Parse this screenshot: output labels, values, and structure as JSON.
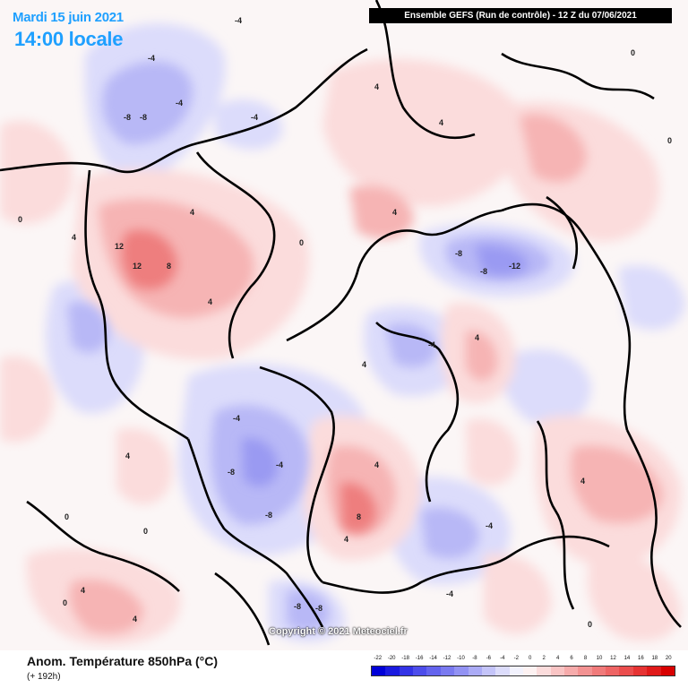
{
  "header": {
    "valid_date": "Mardi 15 juin 2021",
    "local_time": "14:00 locale",
    "run_info": "Ensemble GEFS  (Run de contrôle)  -  12 Z du 07/06/2021"
  },
  "footer": {
    "parameter": "Anom. Température 850hPa (°C)",
    "lead_time": "(+ 192h)",
    "copyright": "Copyright © 2021 Meteociel.fr"
  },
  "legend": {
    "labels": [
      "-22",
      "-20",
      "-18",
      "-16",
      "-14",
      "-12",
      "-10",
      "-8",
      "-6",
      "-4",
      "-2",
      "0",
      "2",
      "4",
      "6",
      "8",
      "10",
      "12",
      "14",
      "16",
      "18",
      "20"
    ],
    "colors": [
      "#0000d8",
      "#1a1ae0",
      "#3333e6",
      "#4d4deb",
      "#6464ee",
      "#7a7af0",
      "#9292f3",
      "#ababf6",
      "#c4c4f9",
      "#dcdcfb",
      "#f2f2fd",
      "#fdf2f2",
      "#fbdcdc",
      "#f9c4c4",
      "#f6abab",
      "#f39292",
      "#f07a7a",
      "#ee6464",
      "#eb4d4d",
      "#e63333",
      "#e01a1a",
      "#d80000"
    ]
  },
  "map": {
    "colors": {
      "cold_weak": "#dcdcfb",
      "cold_mid": "#b8b8f6",
      "cold_strong": "#9a9af2",
      "warm_weak": "#fbdcdc",
      "warm_mid": "#f6b4b4",
      "warm_strong": "#ee7e7e",
      "coastline": "#000000"
    },
    "contour_labels": [
      "-4",
      "-4",
      "-4",
      "-8",
      "-8",
      "-4",
      "4",
      "0",
      "4",
      "0",
      "4",
      "12",
      "12",
      "8",
      "4",
      "4",
      "0",
      "4",
      "-8",
      "-12",
      "-8",
      "-4",
      "4",
      "4",
      "-4",
      "-8",
      "-8",
      "-4",
      "4",
      "8",
      "4",
      "-4",
      "-8",
      "-8",
      "-4",
      "4",
      "4",
      "0",
      "0",
      "4",
      "0",
      "4",
      "0",
      "0"
    ]
  }
}
